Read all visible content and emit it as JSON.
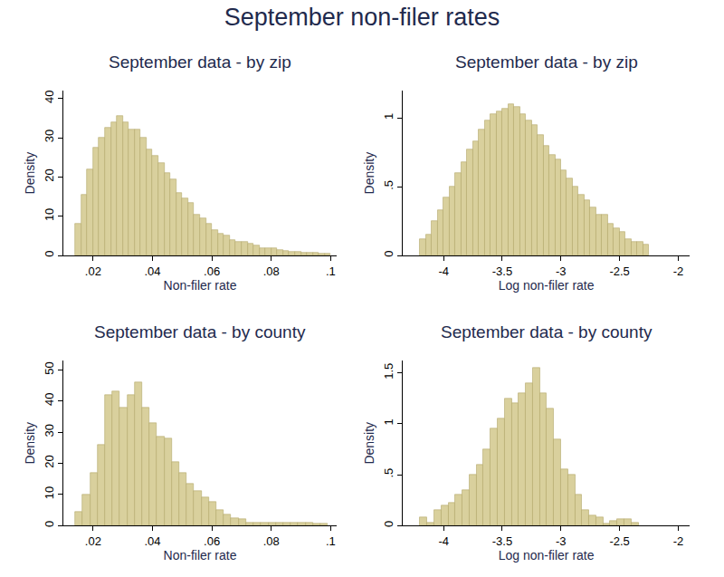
{
  "title": "September non-filer rates",
  "chart_data": [
    {
      "type": "histogram",
      "title": "September data - by zip",
      "x_label": "Non-filer rate",
      "y_label": "Density",
      "bins": [
        0.014,
        0.016,
        0.018,
        0.02,
        0.022,
        0.024,
        0.026,
        0.028,
        0.03,
        0.032,
        0.034,
        0.036,
        0.038,
        0.04,
        0.042,
        0.044,
        0.046,
        0.048,
        0.05,
        0.052,
        0.054,
        0.056,
        0.058,
        0.06,
        0.062,
        0.064,
        0.066,
        0.068,
        0.07,
        0.072,
        0.074,
        0.076,
        0.078,
        0.08,
        0.082,
        0.084,
        0.086,
        0.088,
        0.09,
        0.092,
        0.094,
        0.096,
        0.098,
        0.1
      ],
      "counts": [
        8,
        15.5,
        22,
        27.5,
        30,
        32.5,
        34,
        35.5,
        34,
        32,
        32,
        30,
        27,
        25.5,
        23.5,
        21,
        19.5,
        16,
        14.5,
        13.5,
        10.5,
        9.5,
        8,
        6.5,
        5.5,
        5,
        4,
        3.5,
        3.5,
        3,
        2.5,
        2,
        2,
        1.8,
        1.5,
        1.3,
        1,
        1,
        0.8,
        0.8,
        0.7,
        0.5,
        0.4
      ],
      "color": "#d9d09d",
      "grid": false,
      "xlim": [
        0.01,
        0.102
      ],
      "xticks": [
        {
          "value": 0.02,
          "label": ".02"
        },
        {
          "value": 0.04,
          "label": ".04"
        },
        {
          "value": 0.06,
          "label": ".06"
        },
        {
          "value": 0.08,
          "label": ".08"
        },
        {
          "value": 0.1,
          "label": ".1"
        }
      ],
      "ylim": [
        0,
        42
      ],
      "yticks": [
        0,
        10,
        20,
        30,
        40
      ]
    },
    {
      "type": "histogram",
      "title": "September data - by zip",
      "x_label": "Log non-filer rate",
      "y_label": "Density",
      "bins": [
        -4.2,
        -4.15,
        -4.1,
        -4.05,
        -4,
        -3.95,
        -3.9,
        -3.85,
        -3.8,
        -3.75,
        -3.7,
        -3.65,
        -3.6,
        -3.55,
        -3.5,
        -3.45,
        -3.4,
        -3.35,
        -3.3,
        -3.25,
        -3.2,
        -3.15,
        -3.1,
        -3.05,
        -3,
        -2.95,
        -2.9,
        -2.85,
        -2.8,
        -2.75,
        -2.7,
        -2.65,
        -2.6,
        -2.55,
        -2.5,
        -2.45,
        -2.4,
        -2.35,
        -2.3,
        -2.25
      ],
      "counts": [
        0.12,
        0.15,
        0.25,
        0.33,
        0.42,
        0.5,
        0.6,
        0.68,
        0.77,
        0.83,
        0.92,
        0.98,
        1.03,
        1.05,
        1.07,
        1.1,
        1.08,
        1.03,
        0.98,
        0.95,
        0.88,
        0.8,
        0.73,
        0.7,
        0.62,
        0.56,
        0.5,
        0.44,
        0.4,
        0.35,
        0.3,
        0.3,
        0.23,
        0.2,
        0.17,
        0.12,
        0.1,
        0.1,
        0.08
      ],
      "color": "#d9d09d",
      "grid": false,
      "xlim": [
        -4.35,
        -1.9
      ],
      "xticks": [
        -4,
        -3.5,
        -3,
        -2.5,
        -2
      ],
      "ylim": [
        0,
        1.2
      ],
      "yticks": [
        0,
        {
          "value": 0.5,
          "label": ".5"
        },
        1
      ]
    },
    {
      "type": "histogram",
      "title": "September data - by county",
      "x_label": "Non-filer rate",
      "y_label": "Density",
      "bins": [
        0.014,
        0.0165,
        0.019,
        0.0215,
        0.024,
        0.0265,
        0.029,
        0.0315,
        0.034,
        0.0365,
        0.039,
        0.0415,
        0.044,
        0.0465,
        0.049,
        0.0515,
        0.054,
        0.0565,
        0.059,
        0.0615,
        0.064,
        0.0665,
        0.069,
        0.0715,
        0.074,
        0.0765,
        0.079,
        0.0815,
        0.084,
        0.0865,
        0.089,
        0.0915,
        0.094,
        0.0965,
        0.099
      ],
      "counts": [
        4.5,
        10,
        17,
        26,
        42,
        43,
        38,
        42,
        46,
        38,
        33,
        28.5,
        28,
        20.5,
        17,
        13.5,
        11,
        9,
        7.5,
        5,
        3.5,
        2.5,
        2,
        1,
        0.8,
        0.8,
        1,
        1,
        0.8,
        0.8,
        0.8,
        0.8,
        0.5,
        0.5
      ],
      "color": "#d9d09d",
      "grid": false,
      "xlim": [
        0.01,
        0.102
      ],
      "xticks": [
        {
          "value": 0.02,
          "label": ".02"
        },
        {
          "value": 0.04,
          "label": ".04"
        },
        {
          "value": 0.06,
          "label": ".06"
        },
        {
          "value": 0.08,
          "label": ".08"
        },
        {
          "value": 0.1,
          "label": ".1"
        }
      ],
      "ylim": [
        0,
        53
      ],
      "yticks": [
        0,
        10,
        20,
        30,
        40,
        50
      ]
    },
    {
      "type": "histogram",
      "title": "September data - by county",
      "x_label": "Log non-filer rate",
      "y_label": "Density",
      "bins": [
        -4.2,
        -4.14,
        -4.08,
        -4.02,
        -3.96,
        -3.9,
        -3.84,
        -3.78,
        -3.72,
        -3.66,
        -3.6,
        -3.54,
        -3.48,
        -3.42,
        -3.36,
        -3.3,
        -3.24,
        -3.18,
        -3.12,
        -3.06,
        -3,
        -2.94,
        -2.88,
        -2.82,
        -2.76,
        -2.7,
        -2.64,
        -2.58,
        -2.52,
        -2.46,
        -2.4,
        -2.34
      ],
      "counts": [
        0.08,
        0.03,
        0.15,
        0.2,
        0.22,
        0.3,
        0.35,
        0.5,
        0.6,
        0.75,
        0.95,
        1.05,
        1.25,
        1.2,
        1.3,
        1.4,
        1.55,
        1.3,
        1.15,
        0.85,
        0.55,
        0.5,
        0.3,
        0.15,
        0.1,
        0.08,
        0.02,
        0.05,
        0.06,
        0.06,
        0.03
      ],
      "color": "#d9d09d",
      "grid": false,
      "xlim": [
        -4.35,
        -1.9
      ],
      "xticks": [
        -4,
        -3.5,
        -3,
        -2.5,
        -2
      ],
      "ylim": [
        0,
        1.62
      ],
      "yticks": [
        0,
        {
          "value": 0.5,
          "label": ".5"
        },
        1,
        {
          "value": 1.5,
          "label": "1.5"
        }
      ]
    }
  ]
}
